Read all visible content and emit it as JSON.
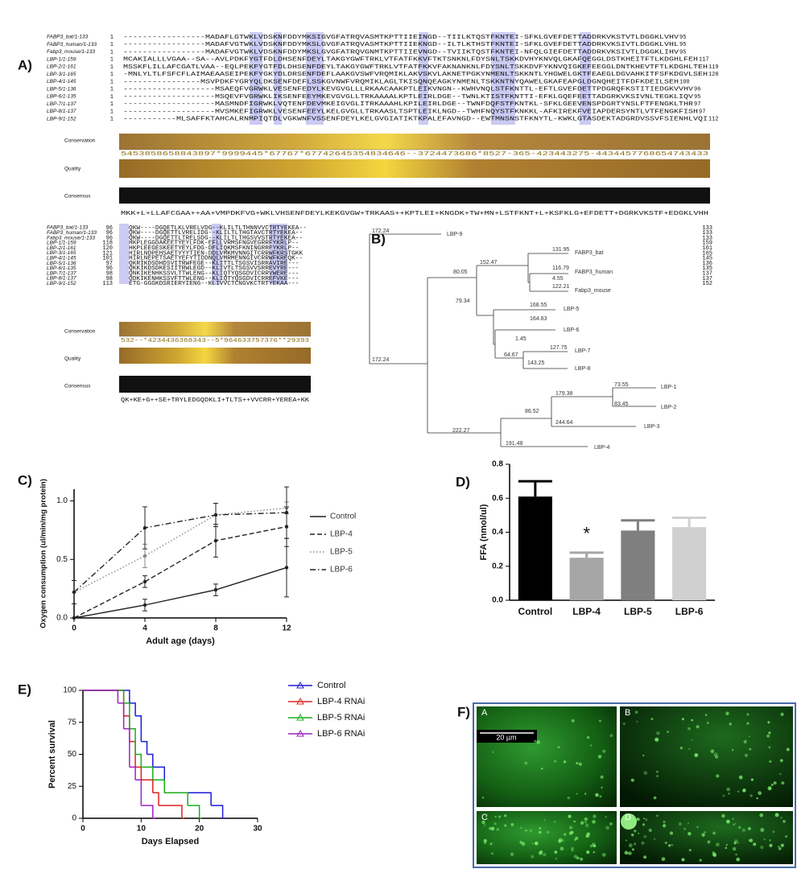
{
  "panel_labels": [
    "A)",
    "B)",
    "C)",
    "D)",
    "E)",
    "F)"
  ],
  "alignment": {
    "track_labels": [
      "Conservation",
      "Quality",
      "Consensus"
    ],
    "blocks": [
      {
        "rows": [
          {
            "name": "FABP3_bat/1-133",
            "start": 1,
            "sequence": "-----------------MADAFLGTWKLVDSKNFDDYMKSIGVGFATRQVASMTKPTTIIEINGD--TIILKTQSTFKNTEI-SFKLGVEFDETTADDRKVKSTVTLDGGKLVHV",
            "end": 95
          },
          {
            "name": "FABP3_human/1-133",
            "start": 1,
            "sequence": "-----------------MADAFVGTWKLVDSKNFDDYMKSLGVGFATRQVASMTKPTTIIEKNGD--ILTLKTHSTFKNTEI-SFKLGVEFDETTADDRKVKSIVTLDGGKLVHL",
            "end": 95
          },
          {
            "name": "Fabp3_mouse/1-133",
            "start": 1,
            "sequence": "-----------------MADAFVGTWKLVDSKNFDDYMKSLGVGFATRQVGNMTKPTTIIEVNGD--TVIIKTQSTFKNTEI-NFQLGIEFDETTADDRKVKSIVTLDGGKLIHV",
            "end": 95
          },
          {
            "name": "LBP-1/1-159",
            "start": 1,
            "sequence": "MCAKIALLLVGAA--SA--AVLPDKFYGTFDLDHSENFDEYLTAKGYGWFTRKLVTFATFKKVFTKTSNKNLFDYSNLTSKKDVHYKNVQLGKAFQEGGLDSTKHEITFTLKDGHLFEH",
            "end": 117
          },
          {
            "name": "LBP-2/1-161",
            "start": 1,
            "sequence": "MSSKFLILLAFCGATLVAA--EQLPEKFYGTFDLDHSENFDEYLTAKGYGWFTRKLVTFATFKKVFAKNANKNLFDYSNLTSKKDVFYKNVQIGKEFEEGGLDNTKHEVTFTLKDGHLTEH",
            "end": 119
          },
          {
            "name": "LBP-3/1-165",
            "start": 1,
            "sequence": "-MNLYLTLFSFCFLAIMAEAASEIPEKFYGKYDLDRSENFDEFLAAKGVSWFVRQMIKLAKVSKVLAKNETPGKYNMENLTSKKNTLYHGWELGKTFEAEGLDGVAHKITFSFKDGVLSEH",
            "end": 120
          },
          {
            "name": "LBP-4/1-145",
            "start": 1,
            "sequence": "----------------MSVPDKFYGRYQLDKSENFDEFLSSKGVNWFVRQMIKLAGLTKISQNQEAGKYNMENLTSKKNTNYQAWELGKAFEAPGLDGNQHEITFDFKDEILSEH",
            "end": 100
          },
          {
            "name": "LBP-5/1-136",
            "start": 1,
            "sequence": "-------------------MSAEQFVGRWKLVESENFEDYLKEVGVGLLLRKAACAAKPTLEIKVNGN--KWHVNQLSTFKNTTL-EFTLGVEFDETTPDGRQFKSTITIEDGKVVHV",
            "end": 96
          },
          {
            "name": "LBP-6/1-135",
            "start": 1,
            "sequence": "-------------------MSQEVFVGRWKLIKSENFEEYMKEVGVGLLTRKAAAALKPTLEIRLDGE--TWNLKTISTFKNTTI-EFKLGQEFEETTADGRKVKSIVNLTEGKLIQV",
            "end": 95
          },
          {
            "name": "LBP-7/1-137",
            "start": 1,
            "sequence": "-------------------MASMNDFIGRWKLVQTENFDEVMKEIGVGLITRKAAAHLKPILEIRLDGE--TWNFDQFSTFKNTKL-SFKLGEEVENSPDGRTYNSLFTFENGKLTHR",
            "end": 97
          },
          {
            "name": "LBP-8/1-137",
            "start": 1,
            "sequence": "-------------------MVSMKEFIGRWKLVESENFEEYLKELGVGLLTRKAASLTSPTLEIKLNGD--TWHFNQYSTFKNKKL-AFKIREKFVEIAPDERSYNTLVTFENGKFISH",
            "end": 97
          },
          {
            "name": "LBP-9/1-152",
            "start": 1,
            "sequence": "-----------MLSAFFKTAHCALRNMPIQTDLVGKWNFVSSENFDEYLKELGVGIATIKTKPALEFAVNGD--EWTMNSNSTFKNYTL-KWKLGTASDEKTADGRDVSSVFSIENHLVQI",
            "end": 112
          }
        ],
        "conservation": "5453858658843897*9999445*67767*67742645354834646--3724473686*8527-365-423443275-4434457768654743433",
        "consensus": "MKK+L+LLAFCGAA++AA+VMPDKFVG+WKLVHSENFDEYLKEKGVGW+TRKAAS++KPTLEI+KNGDK+TW+MN+LSTFKNT+L+KSFKLG+EFDETT+DGRKVKSTF+EDGKLVHH"
      },
      {
        "rows": [
          {
            "name": "FABP3_bat/1-133",
            "start": 96,
            "sequence": "QKW----DGQETLKLVRELVDG--KLILTLTHNNVVCTRTYEKEA--",
            "end": 133
          },
          {
            "name": "FABP3_human/1-133",
            "start": 96,
            "sequence": "QKW----DGQETTLVRELIDG--KLILTLTHGTAVCTRTYEKEA--",
            "end": 133
          },
          {
            "name": "Fabp3_mouse/1-133",
            "start": 96,
            "sequence": "QKW----DGQETTLTRELSDG--KLILTLTHGSVVSTRTYEKEA--",
            "end": 133
          },
          {
            "name": "LBP-1/1-159",
            "start": 118,
            "sequence": "HKPLEGGDAKEETYEYLFDK-EFLLVRMSFNGVEGRRFYKRLP--",
            "end": 159
          },
          {
            "name": "LBP-2/1-161",
            "start": 120,
            "sequence": "HKPLEEGESKEETYEYLFDG-DFLIQKMSFKNINGRRFYKRLP--",
            "end": 161
          },
          {
            "name": "LBP-3/1-165",
            "start": 121,
            "sequence": "HIRLNDPEHSAETYYYTIEN-DDLVMKMVNNGITCRRWFKRSTGKK",
            "end": 165
          },
          {
            "name": "LBP-4/1-145",
            "start": 101,
            "sequence": "HIRLNEPETSAETYEFYTIDDNQLVMRMENNGIVCRRWFKREQK--",
            "end": 145
          },
          {
            "name": "LBP-5/1-136",
            "start": 97,
            "sequence": "QKRIKDSDHDSVITRWFEGE--KLITTLTSGSVISRRAVIRE---",
            "end": 136
          },
          {
            "name": "LBP-6/1-135",
            "start": 96,
            "sequence": "QKKIKDSDKESIITRWLEGD--KLIVTLTSGSVVSRREVYRE---",
            "end": 135
          },
          {
            "name": "LBP-7/1-137",
            "start": 98,
            "sequence": "QNKIKENHKSSVLTTWLENG--KLIQTYQSGDVICRRVWERE---",
            "end": 137
          },
          {
            "name": "LBP-8/1-137",
            "start": 98,
            "sequence": "QDKIKENHKSSVFTTWLENG--KLIQTYQSGDVICRREFVKE---",
            "end": 137
          },
          {
            "name": "LBP-9/1-152",
            "start": 113,
            "sequence": "ETG-GGGKDSRIERYIENG--KLIVVCTCNGVKCTRTYEKAA---",
            "end": 152
          }
        ],
        "conservation": "532--*4234436368343--5*964633757376**29393",
        "consensus": "QK+KE+G++SE+TRYLEDGQDKLI+TLTS++VVCRR+YEREA+KK"
      }
    ]
  },
  "tree": {
    "leaf_labels": [
      "LBP-9",
      "FABP3_bat",
      "FABP3_human",
      "Fabp3_mouse",
      "LBP-5",
      "LBP-6",
      "LBP-7",
      "LBP-8",
      "LBP-1",
      "LBP-2",
      "LBP-3",
      "LBP-4"
    ],
    "branch_labels": [
      172.24,
      131.95,
      152.47,
      116.79,
      4.55,
      122.21,
      80.05,
      168.55,
      79.34,
      164.83,
      1.45,
      127.75,
      64.67,
      143.25,
      172.24,
      73.55,
      179.38,
      83.45,
      86.52,
      244.64,
      222.27,
      191.48
    ]
  },
  "chart_data": [
    {
      "type": "line",
      "x": [
        0,
        4,
        8,
        12
      ],
      "xlim": [
        0,
        12
      ],
      "xticks": [
        0,
        4,
        8,
        12
      ],
      "ylim": [
        0,
        1.1
      ],
      "yticks": [
        {
          "value": 0,
          "label": "0.0"
        },
        {
          "value": 0.5,
          "label": "0.5"
        },
        {
          "value": 1,
          "label": "1.0"
        }
      ],
      "x_label": "Adult age (days)",
      "y_label": "Oxygen consumption (ul/min/mg protein)",
      "legend": "right",
      "series": [
        {
          "name": "Control",
          "color": "#222222",
          "line_style": "solid",
          "values": [
            0,
            0.11,
            0.24,
            0.43
          ],
          "errors": [
            0,
            0.05,
            0.05,
            0.25
          ]
        },
        {
          "name": "LBP-4",
          "color": "#222222",
          "line_style": "dashed",
          "values": [
            0,
            0.31,
            0.66,
            0.78
          ],
          "errors": [
            0,
            0.05,
            0.14,
            0.17
          ]
        },
        {
          "name": "LBP-5",
          "color": "#888888",
          "line_style": "dotted",
          "values": [
            0.22,
            0.53,
            0.88,
            0.94
          ],
          "errors": [
            0,
            0.1,
            0.1,
            0.05
          ]
        },
        {
          "name": "LBP-6",
          "color": "#222222",
          "line_style": "dashdot",
          "values": [
            0.22,
            0.77,
            0.88,
            0.9
          ],
          "errors": [
            0.1,
            0.18,
            0.1,
            0.22
          ]
        }
      ]
    },
    {
      "type": "bar",
      "categories": [
        "Control",
        "LBP-4",
        "LBP-5",
        "LBP-6"
      ],
      "values": [
        0.61,
        0.25,
        0.41,
        0.43
      ],
      "errors": [
        0.09,
        0.03,
        0.06,
        0.055
      ],
      "colors": [
        "#000000",
        "#a6a6a6",
        "#7f7f7f",
        "#d0d0d0"
      ],
      "ylim": [
        0,
        0.8
      ],
      "yticks": [
        {
          "value": 0,
          "label": "0.0"
        },
        {
          "value": 0.2,
          "label": "0.2"
        },
        {
          "value": 0.4,
          "label": "0.4"
        },
        {
          "value": 0.6,
          "label": "0.6"
        },
        {
          "value": 0.8,
          "label": "0.8"
        }
      ],
      "y_label": "FFA (nmol/ul)",
      "annotation": "*"
    },
    {
      "type": "step",
      "xlim": [
        0,
        30
      ],
      "xticks": [
        0,
        10,
        20,
        30
      ],
      "ylim": [
        0,
        100
      ],
      "yticks": [
        0,
        25,
        50,
        75,
        100
      ],
      "x_label": "Days Elapsed",
      "y_label": "Percent survival",
      "legend": "right",
      "series": [
        {
          "name": "Control",
          "color": "#1c1cd6",
          "x": [
            0,
            8,
            9,
            10,
            11,
            12,
            14,
            22,
            24
          ],
          "values": [
            100,
            90,
            80,
            60,
            50,
            40,
            20,
            10,
            0
          ]
        },
        {
          "name": "LBP-4 RNAi",
          "color": "#e02020",
          "x": [
            0,
            7,
            8,
            9,
            10,
            12,
            13,
            17
          ],
          "values": [
            100,
            80,
            60,
            40,
            30,
            20,
            10,
            0
          ]
        },
        {
          "name": "LBP-5 RNAi",
          "color": "#18b018",
          "x": [
            0,
            7,
            8,
            9,
            10,
            12,
            14,
            18,
            20
          ],
          "values": [
            100,
            90,
            70,
            50,
            40,
            30,
            20,
            10,
            0
          ]
        },
        {
          "name": "LBP-6 RNAi",
          "color": "#a020c0",
          "x": [
            0,
            6,
            7,
            8,
            9,
            10,
            12
          ],
          "values": [
            100,
            90,
            70,
            40,
            30,
            10,
            0
          ]
        }
      ]
    }
  ],
  "micrograph": {
    "panel_letters": [
      "A",
      "B",
      "C",
      "D"
    ],
    "scale_bar": "20 µm"
  }
}
